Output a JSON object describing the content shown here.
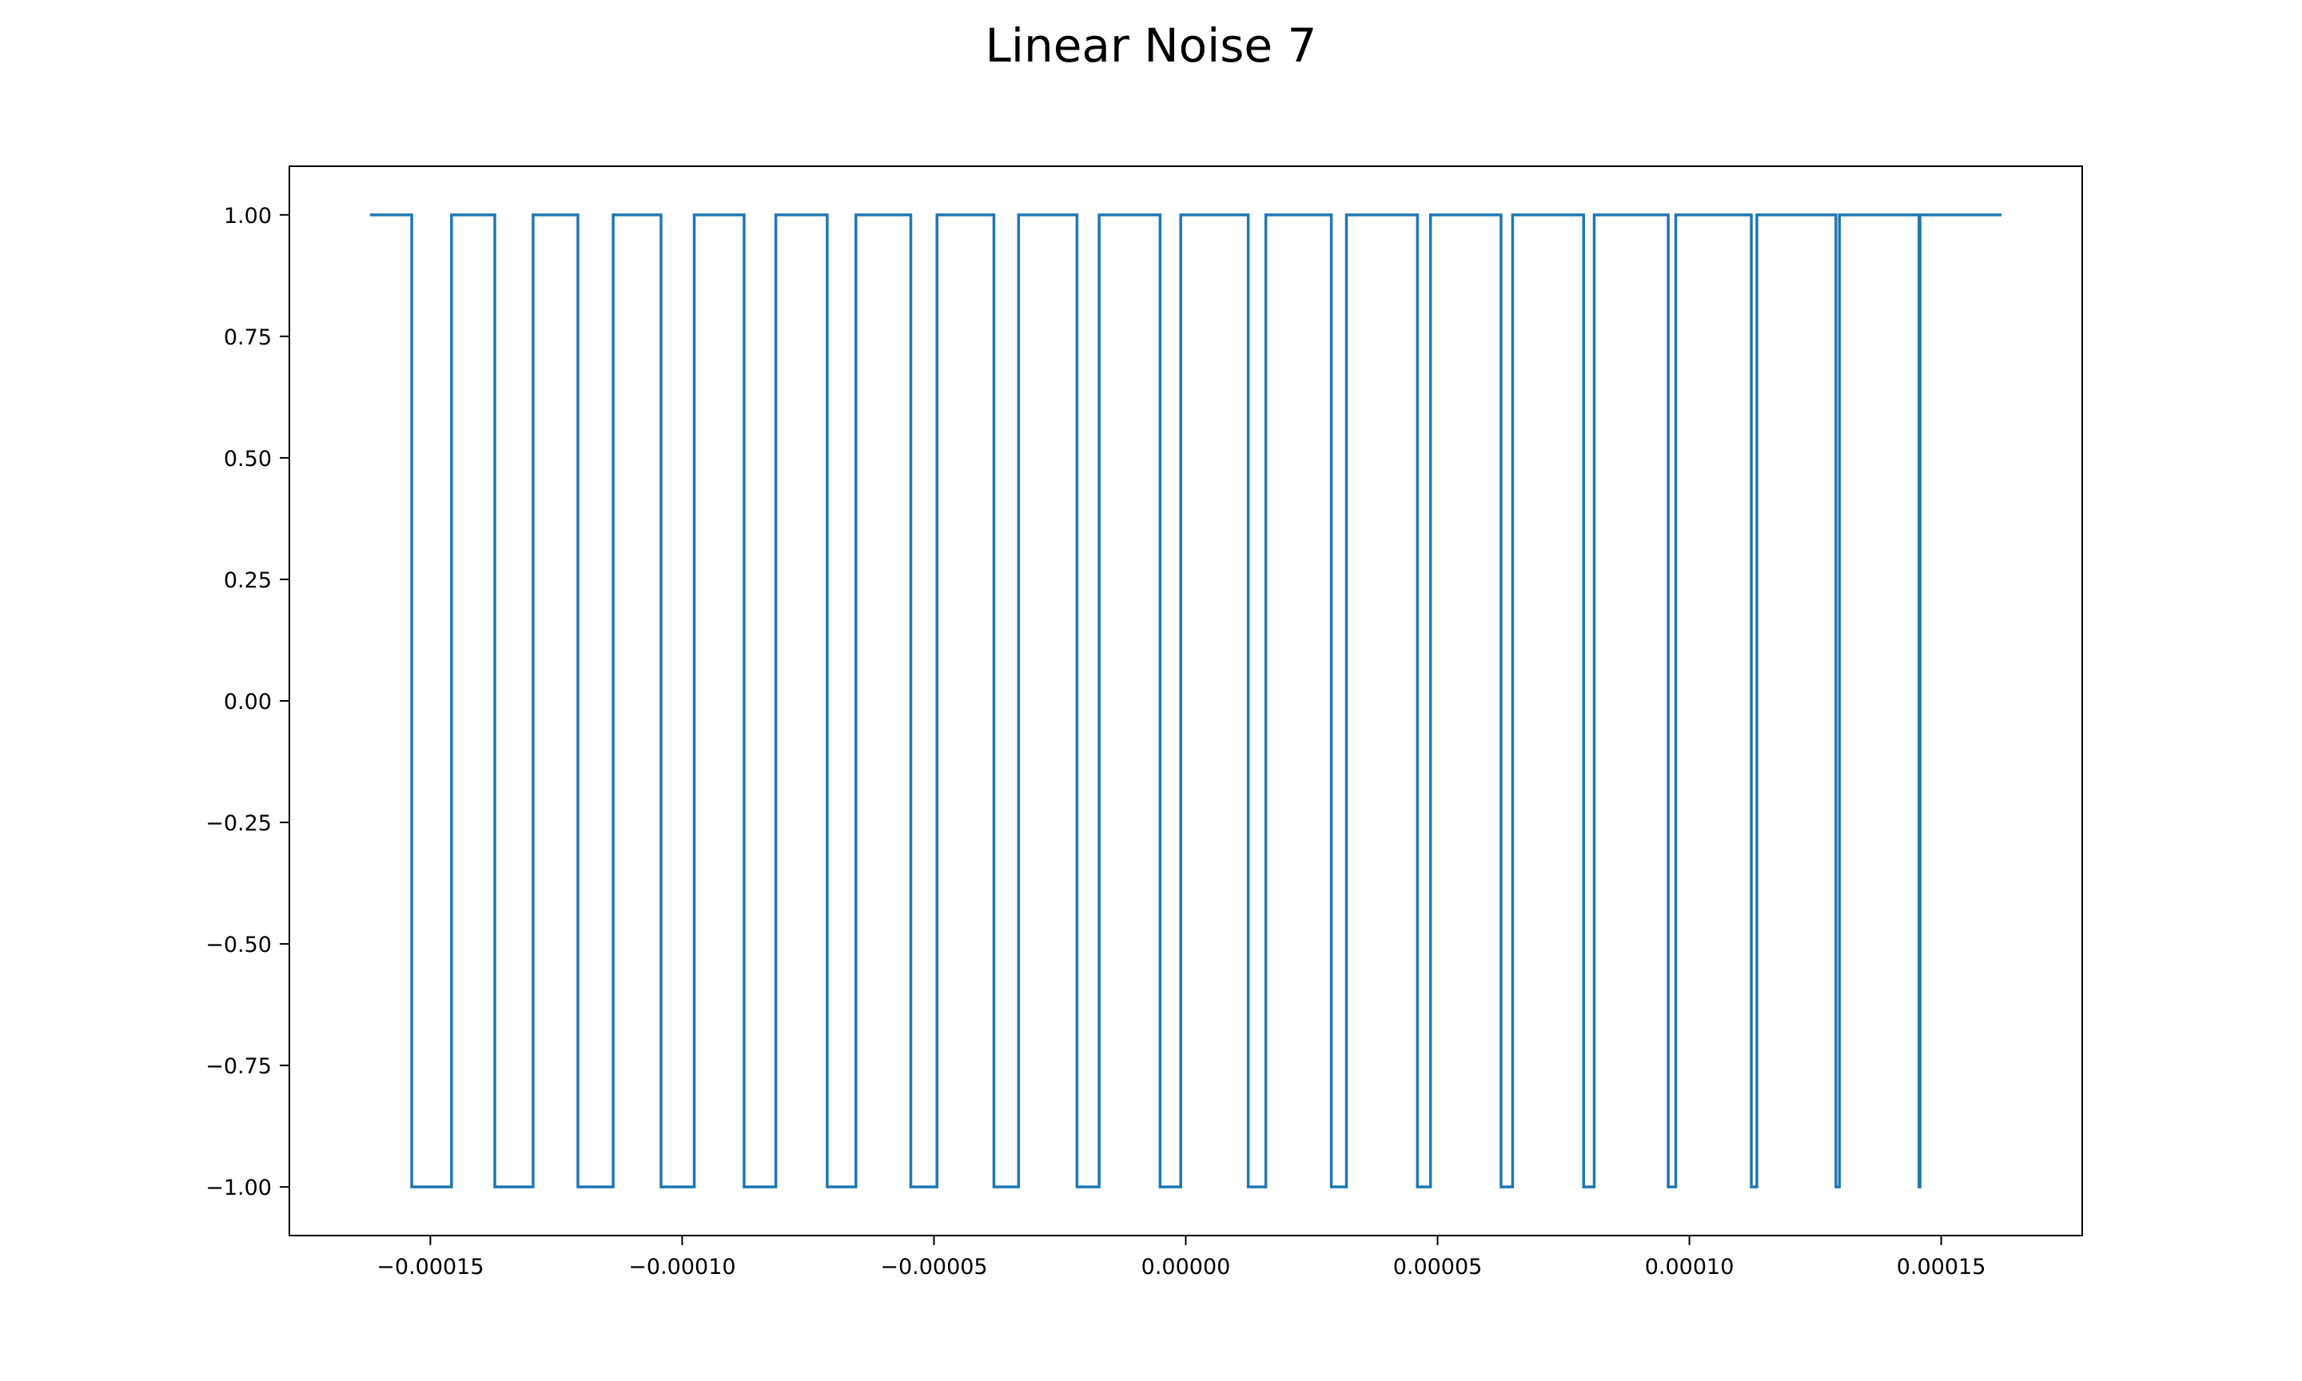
{
  "chart_data": {
    "type": "line",
    "title": "Linear Noise 7",
    "xlabel": "",
    "ylabel": "",
    "xlim": [
      -0.000178,
      0.000178
    ],
    "ylim": [
      -1.1,
      1.1
    ],
    "grid": false,
    "line_color": "#1f77b4",
    "x_ticks": [
      {
        "value": -0.00015,
        "label": "−0.00015"
      },
      {
        "value": -0.0001,
        "label": "−0.00010"
      },
      {
        "value": -5e-05,
        "label": "−0.00005"
      },
      {
        "value": 0.0,
        "label": "0.00000"
      },
      {
        "value": 5e-05,
        "label": "0.00005"
      },
      {
        "value": 0.0001,
        "label": "0.00010"
      },
      {
        "value": 0.00015,
        "label": "0.00015"
      }
    ],
    "y_ticks": [
      {
        "value": 1.0,
        "label": "1.00"
      },
      {
        "value": 0.75,
        "label": "0.75"
      },
      {
        "value": 0.5,
        "label": "0.50"
      },
      {
        "value": 0.25,
        "label": "0.25"
      },
      {
        "value": 0.0,
        "label": "0.00"
      },
      {
        "value": -0.25,
        "label": "−0.25"
      },
      {
        "value": -0.5,
        "label": "−0.50"
      },
      {
        "value": -0.75,
        "label": "−0.75"
      },
      {
        "value": -1.0,
        "label": "−1.00"
      }
    ],
    "series": [
      {
        "x_start": -0.000162,
        "x_end": 0.000162,
        "initial_value": 1.0,
        "low_segments": [
          [
            -0.0001537,
            -0.0001458
          ],
          [
            -0.0001372,
            -0.0001296
          ],
          [
            -0.0001207,
            -0.0001137
          ],
          [
            -0.0001042,
            -9.76e-05
          ],
          [
            -8.77e-05,
            -8.14e-05
          ],
          [
            -7.12e-05,
            -6.55e-05
          ],
          [
            -5.46e-05,
            -4.94e-05
          ],
          [
            -3.81e-05,
            -3.32e-05
          ],
          [
            -2.16e-05,
            -1.72e-05
          ],
          [
            -5.1e-06,
            -1e-06
          ],
          [
            1.24e-05,
            1.59e-05
          ],
          [
            2.89e-05,
            3.19e-05
          ],
          [
            4.6e-05,
            4.86e-05
          ],
          [
            6.26e-05,
            6.49e-05
          ],
          [
            7.9e-05,
            8.11e-05
          ],
          [
            9.58e-05,
            9.73e-05
          ],
          [
            0.0001123,
            0.0001134
          ],
          [
            0.0001291,
            0.0001298
          ],
          [
            0.0001456,
            0.0001458
          ]
        ]
      }
    ]
  }
}
